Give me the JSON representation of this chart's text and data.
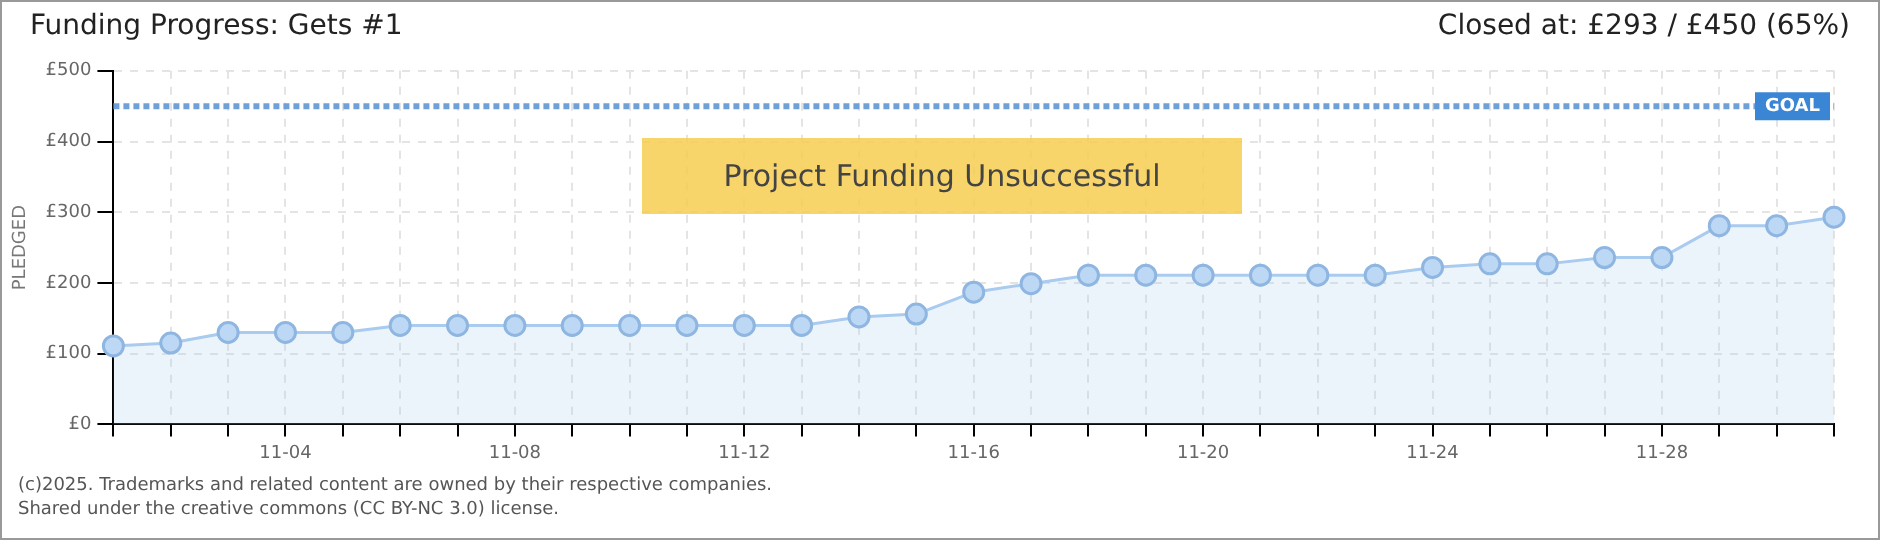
{
  "chart_data": {
    "type": "area",
    "title": "Funding Progress: Gets #1",
    "subtitle": "Closed at: £293 / £450 (65%)",
    "ylabel": "PLEDGED",
    "categories": [
      null,
      null,
      null,
      "11-04",
      null,
      null,
      null,
      "11-08",
      null,
      null,
      null,
      "11-12",
      null,
      null,
      null,
      "11-16",
      null,
      null,
      null,
      "11-20",
      null,
      null,
      null,
      "11-24",
      null,
      null,
      null,
      "11-28",
      null,
      null,
      null
    ],
    "series": [
      {
        "color": "#a9cbef",
        "values": [
          111,
          115,
          130,
          130,
          130,
          140,
          140,
          140,
          140,
          140,
          140,
          140,
          140,
          152,
          156,
          187,
          199,
          211,
          211,
          211,
          211,
          211,
          211,
          222,
          227,
          227,
          236,
          236,
          281,
          281,
          293
        ]
      }
    ],
    "ylim": [
      0,
      500
    ],
    "yticks": [
      {
        "value": 0,
        "label": "£0"
      },
      {
        "value": 100,
        "label": "£100"
      },
      {
        "value": 200,
        "label": "£200"
      },
      {
        "value": 300,
        "label": "£300"
      },
      {
        "value": 400,
        "label": "£400"
      },
      {
        "value": 500,
        "label": "£500"
      }
    ],
    "ref_lines": [
      {
        "axis": "y",
        "value": 450,
        "label": "GOAL",
        "color": "#6fa0d8",
        "line_style": "dotted"
      }
    ],
    "grid": true,
    "legend": false,
    "marker": "circle",
    "annotations": [
      "Project Funding Unsuccessful",
      "(c)2025. Trademarks and related content are owned by their respective companies.",
      "Shared under the creative commons (CC BY-NC 3.0) license."
    ]
  }
}
